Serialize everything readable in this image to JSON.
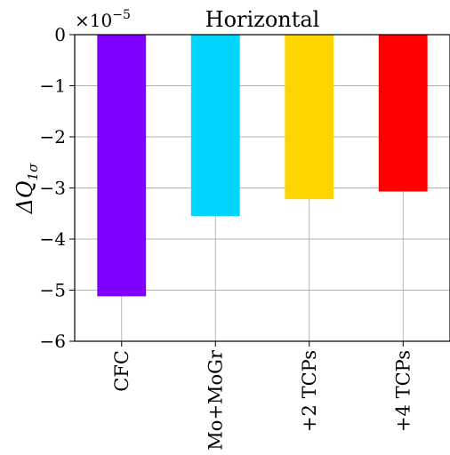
{
  "chart_data": {
    "type": "bar",
    "title": "Horizontal",
    "xlabel": "",
    "ylabel_main": "ΔQ",
    "ylabel_sub": "1σ",
    "offset_label_base": "×10",
    "offset_label_exp": "−5",
    "scale_factor": 1e-05,
    "categories": [
      "CFC",
      "Mo+MoGr",
      "+2 TCPs",
      "+4 TCPs"
    ],
    "values": [
      -5.12,
      -3.55,
      -3.22,
      -3.07
    ],
    "colors": [
      "#7f00ff",
      "#00d5ff",
      "#ffd500",
      "#ff0000"
    ],
    "ylim": [
      -6,
      0
    ],
    "yticks": [
      0,
      -1,
      -2,
      -3,
      -4,
      -5,
      -6
    ],
    "ytick_labels": [
      "0",
      "−1",
      "−2",
      "−3",
      "−4",
      "−5",
      "−6"
    ],
    "grid": true
  }
}
